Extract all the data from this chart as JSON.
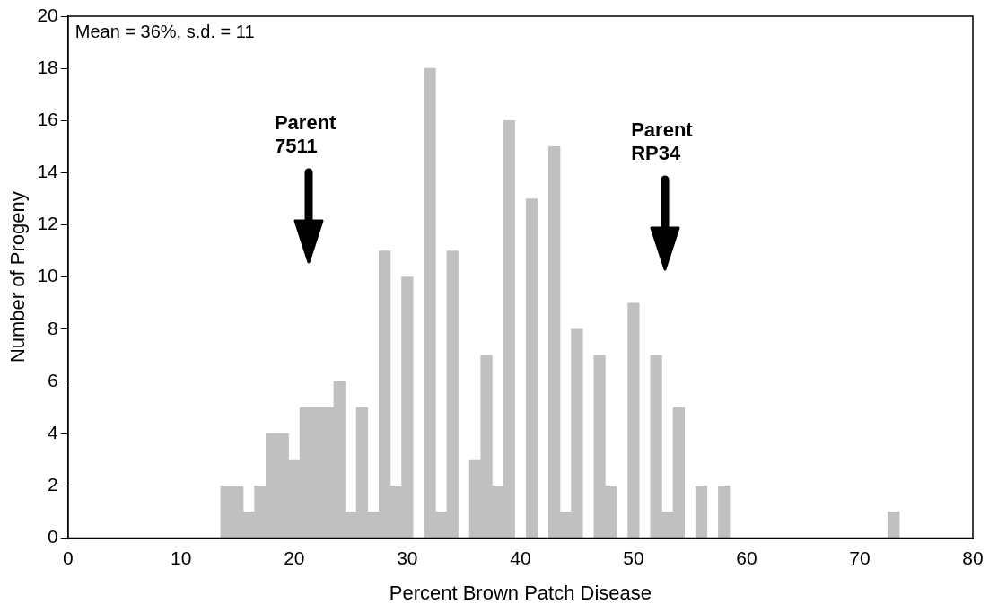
{
  "chart_data": {
    "type": "histogram",
    "xlabel": "Percent Brown Patch Disease",
    "ylabel": "Number of Progeny",
    "bins": [
      13.5,
      14.5,
      15.5,
      16.5,
      17.5,
      18.5,
      19.5,
      20.5,
      21.5,
      22.5,
      23.5,
      24.5,
      25.5,
      26.5,
      27.5,
      28.5,
      29.5,
      30.5,
      31.5,
      32.5,
      33.5,
      34.5,
      35.5,
      36.5,
      37.5,
      38.5,
      39.5,
      40.5,
      41.5,
      42.5,
      43.5,
      44.5,
      45.5,
      46.5,
      47.5,
      48.5,
      49.5,
      50.5,
      51.5,
      52.5,
      53.5,
      54.5,
      55.5,
      56.5,
      57.5,
      58.5,
      59.5,
      60.5,
      61.5,
      62.5,
      63.5,
      64.5,
      65.5,
      66.5,
      67.5,
      68.5,
      69.5,
      70.5,
      71.5,
      72.5,
      73.5
    ],
    "values": [
      2,
      2,
      1,
      2,
      4,
      4,
      3,
      5,
      5,
      5,
      6,
      1,
      5,
      1,
      11,
      2,
      10,
      0,
      18,
      1,
      11,
      0,
      3,
      7,
      2,
      16,
      0,
      13,
      0,
      15,
      1,
      8,
      0,
      7,
      2,
      0,
      9,
      0,
      7,
      1,
      5,
      0,
      2,
      0,
      2,
      0,
      0,
      0,
      0,
      0,
      0,
      0,
      0,
      0,
      0,
      0,
      0,
      0,
      0,
      1
    ],
    "color": "#c0c0c0",
    "xlim": [
      0,
      80
    ],
    "xticks": [
      0,
      10,
      20,
      30,
      40,
      50,
      60,
      70,
      80
    ],
    "ylim": [
      0,
      20
    ],
    "yticks": [
      0,
      2,
      4,
      6,
      8,
      10,
      12,
      14,
      16,
      18,
      20
    ],
    "grid": false,
    "legend": false,
    "annotations": [
      "Mean = 36%, s.d. = 11",
      "Parent\n7511",
      "Parent\nRP34"
    ]
  }
}
